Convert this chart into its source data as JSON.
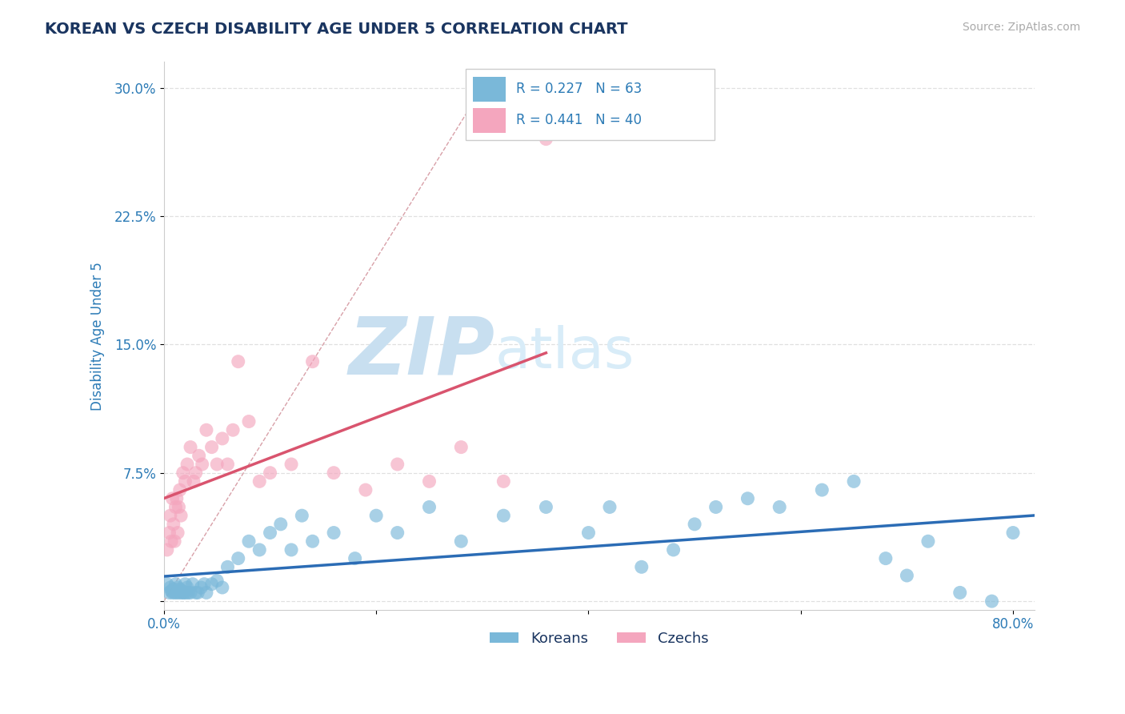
{
  "title": "KOREAN VS CZECH DISABILITY AGE UNDER 5 CORRELATION CHART",
  "source": "Source: ZipAtlas.com",
  "ylabel": "Disability Age Under 5",
  "xlim": [
    0.0,
    0.82
  ],
  "ylim": [
    -0.005,
    0.315
  ],
  "xticks": [
    0.0,
    0.2,
    0.4,
    0.6,
    0.8
  ],
  "xtick_labels": [
    "0.0%",
    "",
    "",
    "",
    "80.0%"
  ],
  "yticks": [
    0.0,
    0.075,
    0.15,
    0.225,
    0.3
  ],
  "ytick_labels": [
    "",
    "7.5%",
    "15.0%",
    "22.5%",
    "30.0%"
  ],
  "korean_R": 0.227,
  "korean_N": 63,
  "czech_R": 0.441,
  "czech_N": 40,
  "korean_color": "#7ab8d9",
  "czech_color": "#f4a6be",
  "korean_line_color": "#2b6cb5",
  "czech_line_color": "#d9546e",
  "title_color": "#1a3560",
  "source_color": "#aaaaaa",
  "value_color": "#2c7bb6",
  "background_color": "#ffffff",
  "grid_color": "#e0e0e0",
  "watermark_zip_color": "#c8dff0",
  "watermark_atlas_color": "#d8ecf8",
  "korean_x": [
    0.003,
    0.005,
    0.006,
    0.007,
    0.008,
    0.009,
    0.01,
    0.011,
    0.012,
    0.013,
    0.014,
    0.015,
    0.016,
    0.017,
    0.018,
    0.019,
    0.02,
    0.021,
    0.022,
    0.023,
    0.025,
    0.027,
    0.03,
    0.032,
    0.035,
    0.038,
    0.04,
    0.045,
    0.05,
    0.055,
    0.06,
    0.07,
    0.08,
    0.09,
    0.1,
    0.11,
    0.12,
    0.13,
    0.14,
    0.16,
    0.18,
    0.2,
    0.22,
    0.25,
    0.28,
    0.32,
    0.36,
    0.4,
    0.42,
    0.45,
    0.48,
    0.5,
    0.52,
    0.55,
    0.58,
    0.62,
    0.65,
    0.68,
    0.7,
    0.72,
    0.75,
    0.78,
    0.8
  ],
  "korean_y": [
    0.01,
    0.005,
    0.008,
    0.006,
    0.005,
    0.007,
    0.005,
    0.01,
    0.005,
    0.008,
    0.005,
    0.007,
    0.005,
    0.006,
    0.005,
    0.005,
    0.01,
    0.005,
    0.008,
    0.005,
    0.005,
    0.01,
    0.005,
    0.005,
    0.008,
    0.01,
    0.005,
    0.01,
    0.012,
    0.008,
    0.02,
    0.025,
    0.035,
    0.03,
    0.04,
    0.045,
    0.03,
    0.05,
    0.035,
    0.04,
    0.025,
    0.05,
    0.04,
    0.055,
    0.035,
    0.05,
    0.055,
    0.04,
    0.055,
    0.02,
    0.03,
    0.045,
    0.055,
    0.06,
    0.055,
    0.065,
    0.07,
    0.025,
    0.015,
    0.035,
    0.005,
    0.0,
    0.04
  ],
  "czech_x": [
    0.003,
    0.005,
    0.006,
    0.007,
    0.008,
    0.009,
    0.01,
    0.011,
    0.012,
    0.013,
    0.014,
    0.015,
    0.016,
    0.018,
    0.02,
    0.022,
    0.025,
    0.028,
    0.03,
    0.033,
    0.036,
    0.04,
    0.045,
    0.05,
    0.055,
    0.06,
    0.065,
    0.07,
    0.08,
    0.09,
    0.1,
    0.12,
    0.14,
    0.16,
    0.19,
    0.22,
    0.25,
    0.28,
    0.32,
    0.36
  ],
  "czech_y": [
    0.03,
    0.04,
    0.05,
    0.035,
    0.06,
    0.045,
    0.035,
    0.055,
    0.06,
    0.04,
    0.055,
    0.065,
    0.05,
    0.075,
    0.07,
    0.08,
    0.09,
    0.07,
    0.075,
    0.085,
    0.08,
    0.1,
    0.09,
    0.08,
    0.095,
    0.08,
    0.1,
    0.14,
    0.105,
    0.07,
    0.075,
    0.08,
    0.14,
    0.075,
    0.065,
    0.08,
    0.07,
    0.09,
    0.07,
    0.27
  ]
}
